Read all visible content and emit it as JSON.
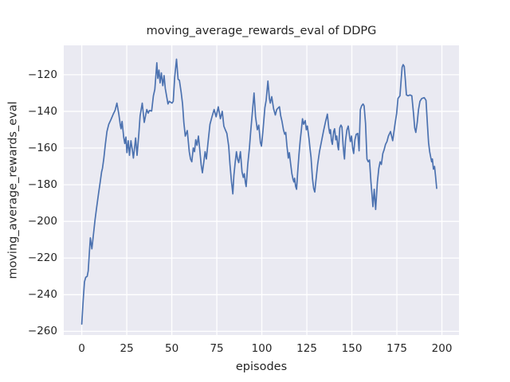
{
  "chart_data": {
    "type": "line",
    "title": "moving_average_rewards_eval of DDPG",
    "xlabel": "episodes",
    "ylabel": "moving_average_rewards_eval",
    "xticks": [
      0,
      25,
      50,
      75,
      100,
      125,
      150,
      175,
      200
    ],
    "yticks": [
      -120,
      -140,
      -160,
      -180,
      -200,
      -220,
      -240,
      -260
    ],
    "xlim": [
      -10,
      209.5
    ],
    "ylim": [
      -262,
      -104
    ],
    "grid": true,
    "legend": false,
    "colors": {
      "line": "#4c72b0",
      "axes_bg": "#eaeaf2",
      "grid": "#ffffff",
      "text": "#262626"
    },
    "series": [
      {
        "name": "moving_average_rewards_eval",
        "points": [
          [
            0,
            -256
          ],
          [
            0.8,
            -243
          ],
          [
            1.5,
            -233
          ],
          [
            2.2,
            -230.5
          ],
          [
            3,
            -230
          ],
          [
            3.6,
            -227
          ],
          [
            4.3,
            -216
          ],
          [
            4.8,
            -209
          ],
          [
            5.6,
            -215
          ],
          [
            6.3,
            -209
          ],
          [
            7.4,
            -199
          ],
          [
            8.2,
            -193
          ],
          [
            9.3,
            -185
          ],
          [
            10.2,
            -179
          ],
          [
            11,
            -173
          ],
          [
            11.5,
            -171
          ],
          [
            12.2,
            -166
          ],
          [
            13.1,
            -158
          ],
          [
            14,
            -151
          ],
          [
            15,
            -147
          ],
          [
            16.2,
            -144.5
          ],
          [
            17.5,
            -141.5
          ],
          [
            18.5,
            -139.5
          ],
          [
            19.5,
            -135.5
          ],
          [
            20.6,
            -141.5
          ],
          [
            21.4,
            -147.5
          ],
          [
            21.8,
            -149.5
          ],
          [
            22.4,
            -145.5
          ],
          [
            23.3,
            -154
          ],
          [
            23.9,
            -157.5
          ],
          [
            24.5,
            -154
          ],
          [
            25.1,
            -162.5
          ],
          [
            25.8,
            -156
          ],
          [
            26.5,
            -164
          ],
          [
            27.3,
            -156
          ],
          [
            28,
            -160.5
          ],
          [
            28.7,
            -165.5
          ],
          [
            29.9,
            -154.5
          ],
          [
            30.7,
            -164
          ],
          [
            31.7,
            -152.5
          ],
          [
            32.4,
            -142.5
          ],
          [
            33.6,
            -135.5
          ],
          [
            34.7,
            -146
          ],
          [
            35.4,
            -142.5
          ],
          [
            36.1,
            -139
          ],
          [
            36.9,
            -141
          ],
          [
            37.6,
            -139.5
          ],
          [
            38.8,
            -139.8
          ],
          [
            39.8,
            -131.5
          ],
          [
            40.6,
            -128
          ],
          [
            41.7,
            -113.5
          ],
          [
            42.2,
            -122
          ],
          [
            42.9,
            -117.5
          ],
          [
            43.5,
            -124.5
          ],
          [
            44.2,
            -119
          ],
          [
            45,
            -126
          ],
          [
            45.7,
            -120.5
          ],
          [
            46.4,
            -127.5
          ],
          [
            47.9,
            -136
          ],
          [
            48.6,
            -134.5
          ],
          [
            50.1,
            -135.5
          ],
          [
            50.8,
            -134.5
          ],
          [
            51.6,
            -121.5
          ],
          [
            52.6,
            -111.5
          ],
          [
            53.5,
            -122.5
          ],
          [
            54.2,
            -123
          ],
          [
            55.2,
            -129.5
          ],
          [
            56,
            -136
          ],
          [
            56.7,
            -146
          ],
          [
            57.5,
            -153.5
          ],
          [
            58.6,
            -150.5
          ],
          [
            59.7,
            -162
          ],
          [
            60.4,
            -166
          ],
          [
            61.1,
            -167.5
          ],
          [
            61.9,
            -160
          ],
          [
            62.6,
            -162
          ],
          [
            63.3,
            -155.5
          ],
          [
            64,
            -158.5
          ],
          [
            64.8,
            -153.5
          ],
          [
            65.5,
            -160.5
          ],
          [
            66.3,
            -169
          ],
          [
            67,
            -173.5
          ],
          [
            67.8,
            -167.5
          ],
          [
            68.5,
            -162
          ],
          [
            69.2,
            -166
          ],
          [
            70,
            -158
          ],
          [
            71.2,
            -147
          ],
          [
            72.3,
            -143
          ],
          [
            73.5,
            -139
          ],
          [
            74.6,
            -143
          ],
          [
            75.8,
            -137.5
          ],
          [
            77,
            -144
          ],
          [
            78,
            -140
          ],
          [
            78.9,
            -148
          ],
          [
            79.7,
            -150
          ],
          [
            80.6,
            -152
          ],
          [
            81.6,
            -159
          ],
          [
            82.3,
            -169
          ],
          [
            83.1,
            -178
          ],
          [
            83.9,
            -185
          ],
          [
            84.5,
            -175
          ],
          [
            85.2,
            -168
          ],
          [
            85.9,
            -162
          ],
          [
            86.5,
            -166
          ],
          [
            87.2,
            -168
          ],
          [
            88.1,
            -162
          ],
          [
            89,
            -173
          ],
          [
            89.7,
            -176
          ],
          [
            90.3,
            -174
          ],
          [
            90.9,
            -179
          ],
          [
            91.3,
            -181
          ],
          [
            92.2,
            -169
          ],
          [
            93.1,
            -160
          ],
          [
            93.8,
            -151
          ],
          [
            94.9,
            -139
          ],
          [
            95.7,
            -130
          ],
          [
            96.5,
            -143
          ],
          [
            97.5,
            -150
          ],
          [
            98.3,
            -147.5
          ],
          [
            99.2,
            -157
          ],
          [
            99.8,
            -159
          ],
          [
            100.6,
            -151
          ],
          [
            101.7,
            -138
          ],
          [
            102.4,
            -134
          ],
          [
            103.4,
            -123.5
          ],
          [
            104.2,
            -133
          ],
          [
            104.7,
            -135.5
          ],
          [
            105.5,
            -132
          ],
          [
            106.5,
            -138.5
          ],
          [
            107.5,
            -142
          ],
          [
            108.3,
            -139
          ],
          [
            109.2,
            -138
          ],
          [
            109.8,
            -137.5
          ],
          [
            110.5,
            -142.5
          ],
          [
            111.2,
            -145.5
          ],
          [
            112,
            -150
          ],
          [
            112.7,
            -152.5
          ],
          [
            113.3,
            -151.5
          ],
          [
            113.9,
            -158.5
          ],
          [
            114.7,
            -165.5
          ],
          [
            115.3,
            -162.5
          ],
          [
            116,
            -168.5
          ],
          [
            116.7,
            -174
          ],
          [
            117.3,
            -177
          ],
          [
            117.8,
            -178.5
          ],
          [
            118.2,
            -176.5
          ],
          [
            118.8,
            -181
          ],
          [
            119.3,
            -182.5
          ],
          [
            119.9,
            -173.5
          ],
          [
            120.6,
            -164
          ],
          [
            121.3,
            -156
          ],
          [
            121.9,
            -150.5
          ],
          [
            122.6,
            -144
          ],
          [
            123.2,
            -147
          ],
          [
            124.1,
            -145
          ],
          [
            124.7,
            -150
          ],
          [
            125.3,
            -148
          ],
          [
            126.2,
            -155
          ],
          [
            126.8,
            -160.5
          ],
          [
            127.3,
            -165
          ],
          [
            128.1,
            -176.5
          ],
          [
            128.8,
            -182
          ],
          [
            129.4,
            -184
          ],
          [
            130,
            -178
          ],
          [
            131,
            -169
          ],
          [
            132,
            -162
          ],
          [
            133.2,
            -156
          ],
          [
            134.3,
            -150.5
          ],
          [
            135.4,
            -145.5
          ],
          [
            136.4,
            -141.5
          ],
          [
            137.2,
            -149
          ],
          [
            137.7,
            -152
          ],
          [
            138.1,
            -150
          ],
          [
            138.7,
            -156
          ],
          [
            139.2,
            -158
          ],
          [
            139.9,
            -151
          ],
          [
            140.4,
            -149.5
          ],
          [
            141.1,
            -155.5
          ],
          [
            141.6,
            -153.5
          ],
          [
            142.2,
            -159
          ],
          [
            142.6,
            -161
          ],
          [
            143.3,
            -149
          ],
          [
            143.9,
            -147.5
          ],
          [
            144.5,
            -148.5
          ],
          [
            145.1,
            -158
          ],
          [
            145.6,
            -163.5
          ],
          [
            145.9,
            -166
          ],
          [
            146.5,
            -156
          ],
          [
            147.3,
            -150
          ],
          [
            148,
            -148
          ],
          [
            148.8,
            -154
          ],
          [
            149.2,
            -156.5
          ],
          [
            149.8,
            -153.5
          ],
          [
            150.5,
            -160.5
          ],
          [
            151,
            -163
          ],
          [
            151.7,
            -155.5
          ],
          [
            152.4,
            -152.5
          ],
          [
            153.3,
            -152
          ],
          [
            154,
            -161.5
          ],
          [
            154.7,
            -139
          ],
          [
            155.4,
            -137
          ],
          [
            156.2,
            -136
          ],
          [
            156.8,
            -137
          ],
          [
            157.6,
            -146.5
          ],
          [
            158.4,
            -166
          ],
          [
            159.1,
            -167.5
          ],
          [
            159.8,
            -166.5
          ],
          [
            160.6,
            -178.5
          ],
          [
            161.7,
            -192
          ],
          [
            162.4,
            -182.5
          ],
          [
            163.2,
            -193.5
          ],
          [
            164.2,
            -178.5
          ],
          [
            165,
            -171
          ],
          [
            165.7,
            -167.5
          ],
          [
            166.4,
            -169
          ],
          [
            167.2,
            -163
          ],
          [
            167.9,
            -161
          ],
          [
            168.7,
            -158
          ],
          [
            169.5,
            -156.5
          ],
          [
            170.3,
            -153.5
          ],
          [
            171.5,
            -151
          ],
          [
            172.7,
            -156
          ],
          [
            174.1,
            -146
          ],
          [
            174.9,
            -141
          ],
          [
            175.6,
            -133
          ],
          [
            176.7,
            -131.5
          ],
          [
            177.3,
            -124
          ],
          [
            177.9,
            -116
          ],
          [
            178.5,
            -114.5
          ],
          [
            179.1,
            -115.5
          ],
          [
            179.7,
            -123
          ],
          [
            180.3,
            -131
          ],
          [
            181.2,
            -131.5
          ],
          [
            182.3,
            -131
          ],
          [
            183.3,
            -131.5
          ],
          [
            184.3,
            -142
          ],
          [
            184.9,
            -149
          ],
          [
            185.5,
            -151.5
          ],
          [
            186.3,
            -146
          ],
          [
            187,
            -139
          ],
          [
            187.8,
            -134.5
          ],
          [
            188.8,
            -133
          ],
          [
            190.2,
            -132.5
          ],
          [
            191.2,
            -134
          ],
          [
            192,
            -148
          ],
          [
            192.6,
            -157
          ],
          [
            193.2,
            -162
          ],
          [
            193.8,
            -165
          ],
          [
            194.3,
            -167.5
          ],
          [
            194.7,
            -166
          ],
          [
            195.3,
            -171.5
          ],
          [
            195.9,
            -170
          ],
          [
            196.5,
            -175.5
          ],
          [
            197.1,
            -182
          ]
        ]
      }
    ]
  }
}
